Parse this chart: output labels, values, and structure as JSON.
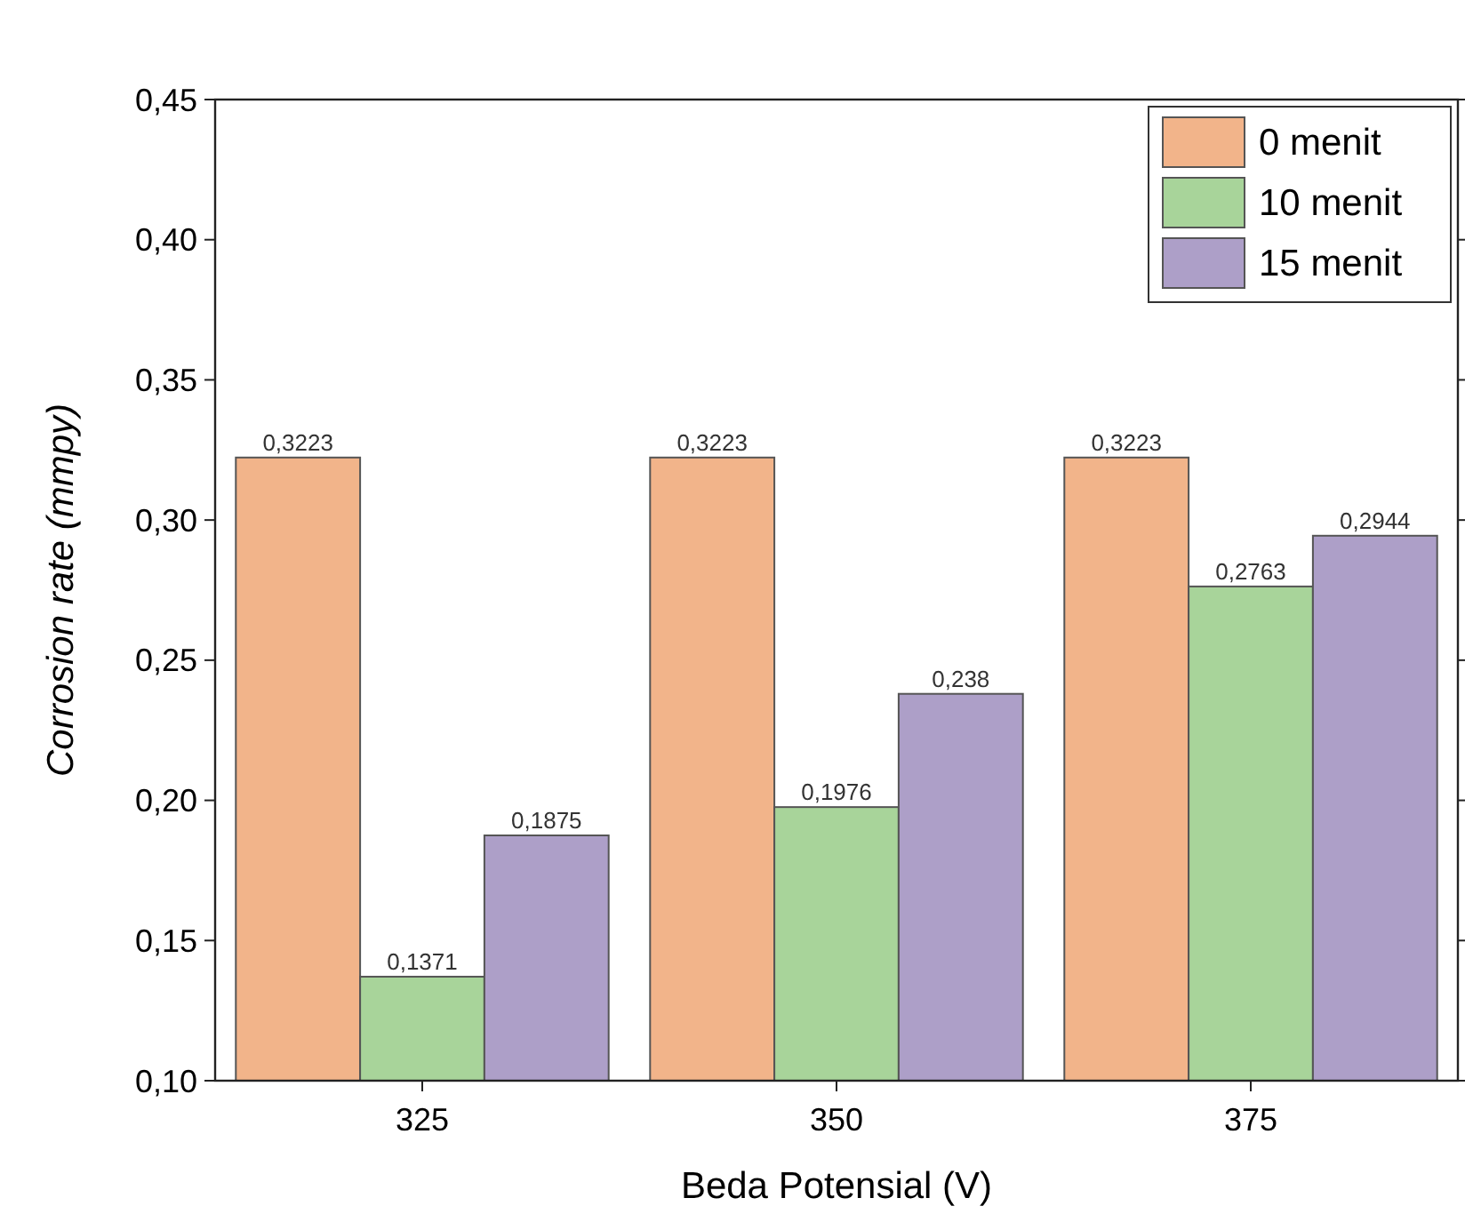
{
  "chart_data": {
    "type": "bar",
    "xlabel": "Beda Potensial (V)",
    "ylabel": "Corrosion rate (mmpy)",
    "categories": [
      "325",
      "350",
      "375"
    ],
    "series": [
      {
        "name": "0 menit",
        "color": "#f2b48a",
        "values": [
          0.3223,
          0.3223,
          0.3223
        ],
        "value_labels": [
          "0,3223",
          "0,3223",
          "0,3223"
        ]
      },
      {
        "name": "10 menit",
        "color": "#a8d49a",
        "values": [
          0.1371,
          0.1976,
          0.2763
        ],
        "value_labels": [
          "0,1371",
          "0,1976",
          "0,2763"
        ]
      },
      {
        "name": "15 menit",
        "color": "#ad9fc8",
        "values": [
          0.1875,
          0.238,
          0.2944
        ],
        "value_labels": [
          "0,1875",
          "0,238",
          "0,2944"
        ]
      }
    ],
    "ylim": [
      0.1,
      0.45
    ],
    "yticks": [
      {
        "value": 0.1,
        "label": "0,10"
      },
      {
        "value": 0.15,
        "label": "0,15"
      },
      {
        "value": 0.2,
        "label": "0,20"
      },
      {
        "value": 0.25,
        "label": "0,25"
      },
      {
        "value": 0.3,
        "label": "0,30"
      },
      {
        "value": 0.35,
        "label": "0,35"
      },
      {
        "value": 0.4,
        "label": "0,40"
      },
      {
        "value": 0.45,
        "label": "0,45"
      }
    ],
    "grid": false,
    "legend": "top right"
  }
}
